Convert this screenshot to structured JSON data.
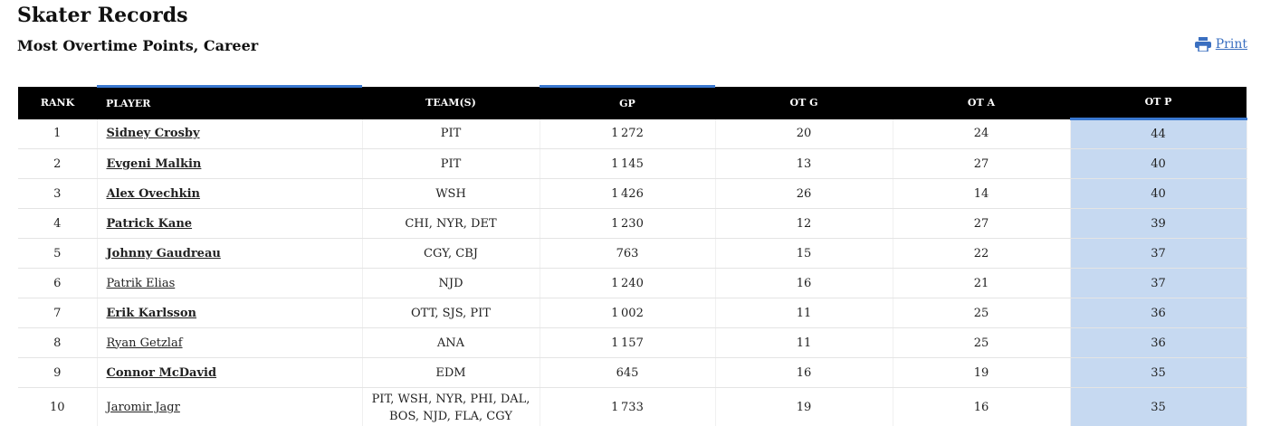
{
  "header": {
    "title": "Skater Records",
    "subtitle": "Most Overtime Points, Career",
    "print": "Print"
  },
  "table": {
    "columns": [
      "RANK",
      "PLAYER",
      "TEAM(S)",
      "GP",
      "OT G",
      "OT A",
      "OT P"
    ],
    "rows": [
      {
        "cells": [
          "1",
          "Sidney Crosby",
          "PIT",
          "1 272",
          "20",
          "24",
          "44"
        ],
        "bold": true
      },
      {
        "cells": [
          "2",
          "Evgeni Malkin",
          "PIT",
          "1 145",
          "13",
          "27",
          "40"
        ],
        "bold": true
      },
      {
        "cells": [
          "3",
          "Alex Ovechkin",
          "WSH",
          "1 426",
          "26",
          "14",
          "40"
        ],
        "bold": true
      },
      {
        "cells": [
          "4",
          "Patrick Kane",
          "CHI, NYR, DET",
          "1 230",
          "12",
          "27",
          "39"
        ],
        "bold": true
      },
      {
        "cells": [
          "5",
          "Johnny Gaudreau",
          "CGY, CBJ",
          "763",
          "15",
          "22",
          "37"
        ],
        "bold": true
      },
      {
        "cells": [
          "6",
          "Patrik Elias",
          "NJD",
          "1 240",
          "16",
          "21",
          "37"
        ],
        "bold": false
      },
      {
        "cells": [
          "7",
          "Erik Karlsson",
          "OTT, SJS, PIT",
          "1 002",
          "11",
          "25",
          "36"
        ],
        "bold": true
      },
      {
        "cells": [
          "8",
          "Ryan Getzlaf",
          "ANA",
          "1 157",
          "11",
          "25",
          "36"
        ],
        "bold": false
      },
      {
        "cells": [
          "9",
          "Connor McDavid",
          "EDM",
          "645",
          "16",
          "19",
          "35"
        ],
        "bold": true
      },
      {
        "cells": [
          "10",
          "Jaromir Jagr",
          "PIT, WSH, NYR, PHI, DAL, BOS, NJD, FLA, CGY",
          "1 733",
          "19",
          "16",
          "35"
        ],
        "bold": false
      }
    ]
  }
}
